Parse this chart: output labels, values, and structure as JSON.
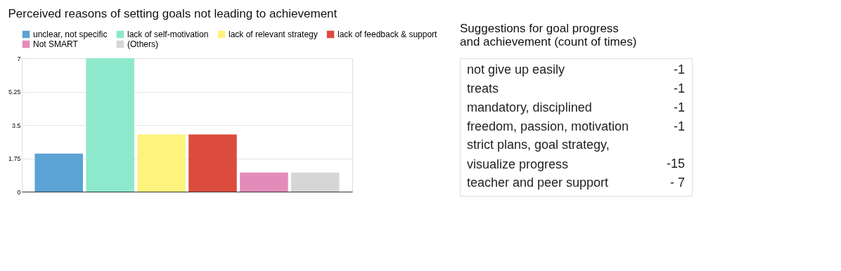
{
  "chart_data": [
    {
      "type": "bar",
      "title": "Perceived reasons of setting goals not leading to achievement",
      "categories": [
        null
      ],
      "series": [
        {
          "name": "unclear, not specific",
          "color": "#5ba3d4",
          "values": [
            2
          ]
        },
        {
          "name": "lack of self-motivation",
          "color": "#8ee8cc",
          "values": [
            7
          ]
        },
        {
          "name": "lack of relevant strategy",
          "color": "#fdf37d",
          "values": [
            3
          ]
        },
        {
          "name": "lack of feedback & support",
          "color": "#dc4c3e",
          "values": [
            3
          ]
        },
        {
          "name": "Not SMART",
          "color": "#e38cba",
          "values": [
            1
          ]
        },
        {
          "name": "(Others)",
          "color": "#d6d6d6",
          "values": [
            1
          ]
        }
      ],
      "ylim": [
        0,
        7
      ],
      "yticks": [
        0,
        1.75,
        3.5,
        5.25,
        7
      ],
      "grid": "y",
      "legend": "top",
      "tick_labels": "y"
    },
    {
      "type": "other",
      "title": "Suggestions for goal progress\n and achievement (count of times)",
      "annotations": [
        "not give up easily",
        "-1",
        "treats",
        "-1",
        "mandatory, disciplined",
        "-1",
        "freedom, passion, motivation",
        "-1",
        "strict plans, goal strategy,\nvisualize progress",
        "-15",
        " teacher and peer support",
        "- 7"
      ]
    }
  ]
}
